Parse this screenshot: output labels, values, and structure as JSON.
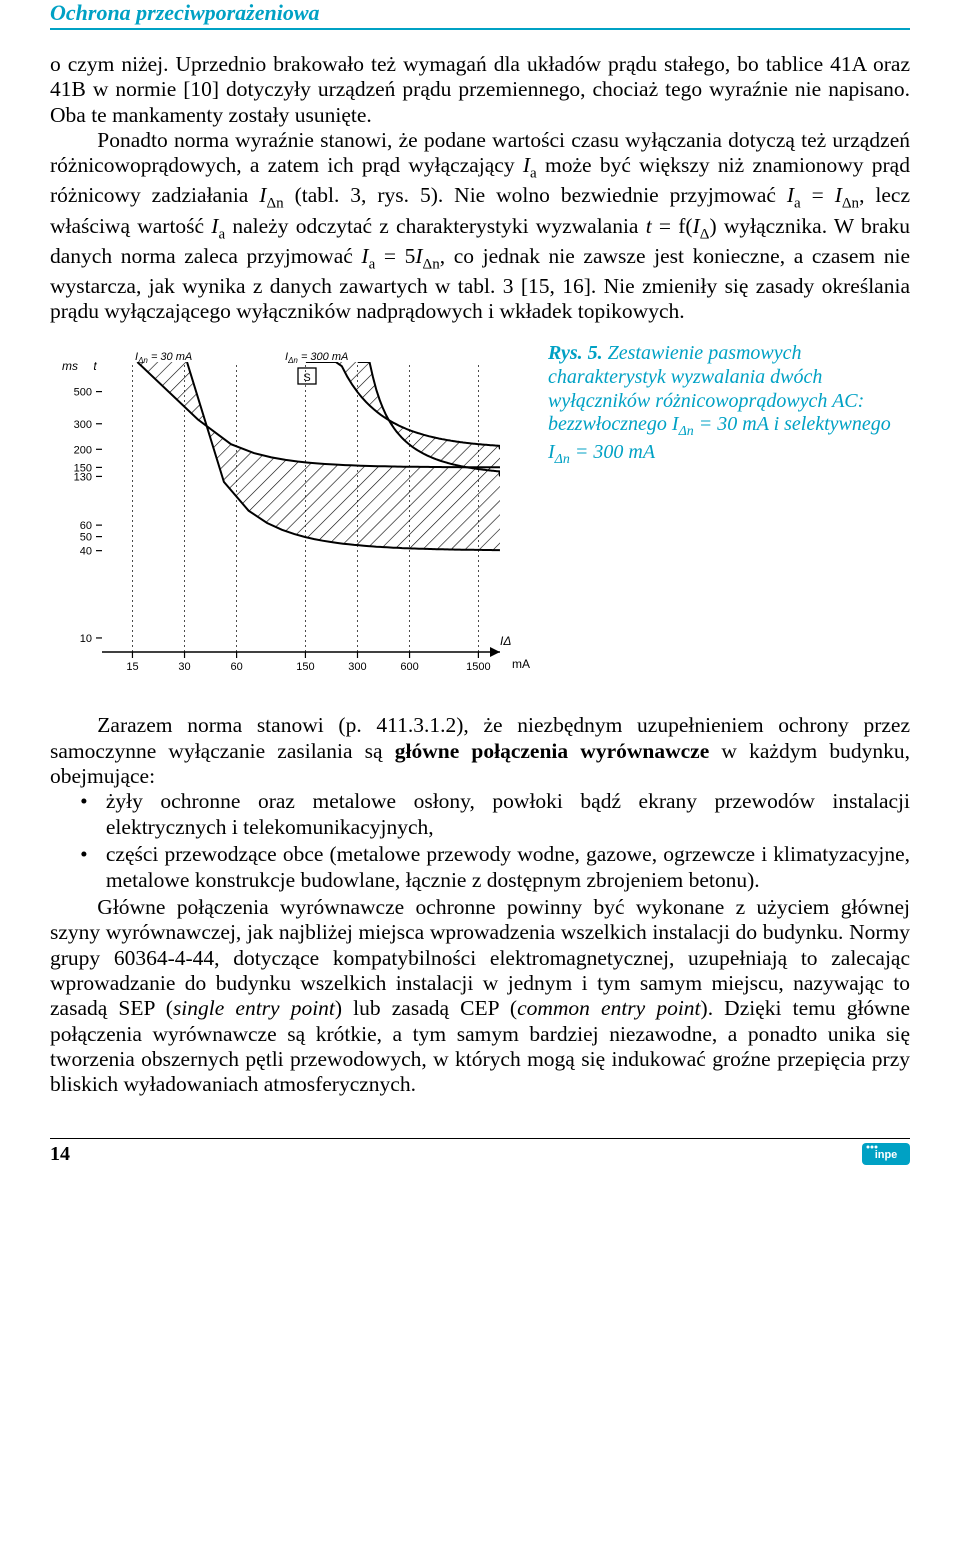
{
  "header": "Ochrona przeciwporażeniowa",
  "para1": "o czym niżej. Uprzednio brakowało też wymagań dla układów prądu stałego, bo tablice 41A oraz 41B w normie [10] dotyczyły urządzeń prądu przemiennego, chociaż tego wyraźnie nie napisano. Oba te mankamenty zostały usunięte.",
  "para2_a": "Ponadto norma wyraźnie stanowi, że podane wartości czasu wyłączania dotyczą też urządzeń różnicowoprądowych, a zatem ich prąd wyłączający ",
  "para2_b": " może być większy niż znamionowy prąd różnicowy zadziałania ",
  "para2_c": " (tabl. 3, rys. 5). Nie wolno bezwiednie przyjmować ",
  "para2_d": ", lecz właściwą wartość ",
  "para2_e": " należy odczytać z charakterystyki wyzwalania ",
  "para2_f": " wyłącznika. W braku danych norma zaleca przyjmować ",
  "para2_g": ", co jednak nie zawsze jest konieczne, a czasem nie wystarcza, jak wynika z danych zawartych w tabl. 3 [15, 16]. Nie zmieniły się zasady określania prądu wyłączającego wyłączników nadprądowych i wkładek topikowych.",
  "fig": {
    "num": "Rys. 5.",
    "caption_a": " Zestawienie pasmowych charakterystyk wyzwalania dwóch wyłączników różnicowoprądowych AC: bezzwłocznego ",
    "caption_b": " = 30 mA i selektywnego ",
    "caption_c": " = 300 mA",
    "x_values": [
      15,
      30,
      60,
      150,
      300,
      600,
      1500
    ],
    "y_values": [
      10,
      40,
      50,
      60,
      130,
      150,
      200,
      300,
      500
    ],
    "x_unit": "mA",
    "y_unit": "ms",
    "legend_left": "IΔn = 30 mA",
    "legend_right": "IΔn = 300 mA",
    "selective_label": "S",
    "yaxis_label": "t",
    "xaxis_label": "IΔ",
    "line_color": "#000000",
    "hatch_color": "#000000",
    "background": "#ffffff"
  },
  "para3": "Zarazem norma stanowi (p. 411.3.1.2), że niezbędnym uzupełnieniem ochrony przez samoczynne wyłączanie zasilania są ",
  "para3_bold": "główne połączenia wyrównawcze",
  "para3_b": " w każdym budynku, obejmujące:",
  "bullets": [
    "żyły ochronne oraz metalowe osłony, powłoki bądź ekrany przewodów instalacji elektrycznych i telekomunikacyjnych,",
    "części przewodzące obce (metalowe przewody wodne, gazowe, ogrzewcze i klimatyzacyjne, metalowe konstrukcje budowlane, łącznie z dostępnym zbrojeniem betonu)."
  ],
  "para4": "Główne połączenia wyrównawcze ochronne powinny być wykonane z użyciem głównej szyny wyrównawczej, jak najbliżej miejsca wprowadzenia wszelkich instalacji do budynku. Normy grupy 60364-4-44, dotyczące kompatybilności elektromagnetycznej, uzupełniają to zalecając wprowadzanie do budynku wszelkich instalacji w jednym i tym samym miejscu, nazywając to zasadą SEP (",
  "para4_it1": "single entry point",
  "para4_b": ") lub zasadą CEP (",
  "para4_it2": "common entry point",
  "para4_c": "). Dzięki temu główne połączenia wyrównawcze są krótkie, a tym samym bardziej niezawodne, a ponadto unika się tworzenia obszernych pętli przewodowych, w których mogą się indukować groźne przepięcia przy bliskich wyładowaniach atmosferycznych.",
  "page_number": "14"
}
